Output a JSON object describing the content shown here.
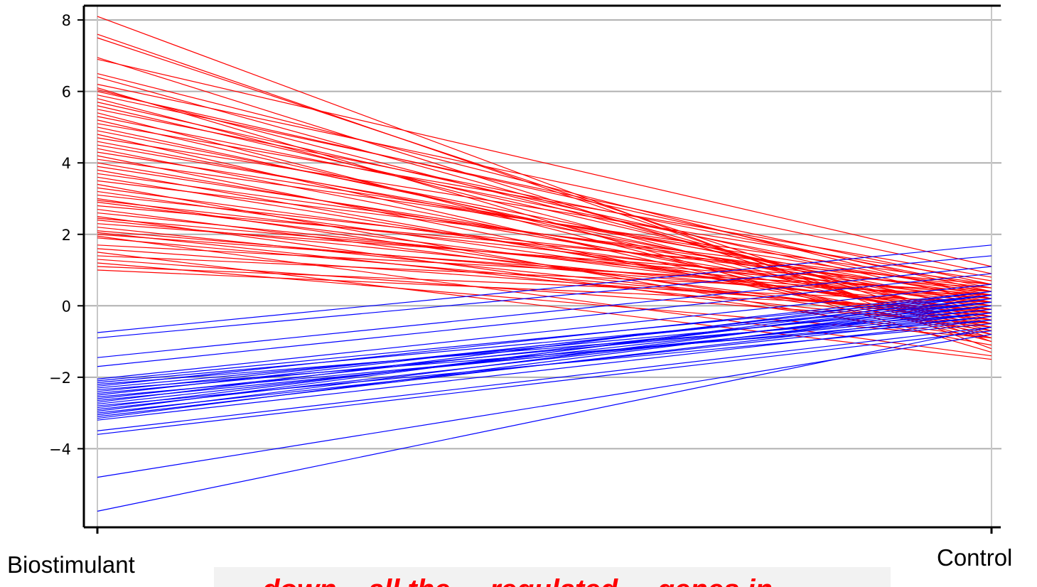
{
  "chart_data": {
    "type": "line",
    "subtype": "parallel-coordinates",
    "categories": [
      "Biostimulant",
      "Control"
    ],
    "ylim": [
      -6.2,
      8.4
    ],
    "yticks": [
      -4,
      -2,
      0,
      2,
      4,
      6,
      8
    ],
    "ytick_labels": [
      "−4",
      "−2",
      "0",
      "2",
      "4",
      "6",
      "8"
    ],
    "grid": true,
    "legend": "none",
    "colors": {
      "up_in_biostimulant": "#ff0000",
      "down_in_biostimulant": "#0000ff",
      "grid": "#b0b0b0",
      "caption_box": "#f2f2f2"
    },
    "series": [
      {
        "color": "#ff0000",
        "lines": [
          [
            8.1,
            -1.2
          ],
          [
            7.6,
            -1.0
          ],
          [
            7.5,
            -0.8
          ],
          [
            6.95,
            -0.9
          ],
          [
            6.9,
            1.1
          ],
          [
            6.5,
            0.2
          ],
          [
            6.4,
            -0.5
          ],
          [
            6.2,
            0.9
          ],
          [
            6.1,
            -1.3
          ],
          [
            6.05,
            -0.4
          ],
          [
            6.0,
            0.4
          ],
          [
            5.9,
            0.6
          ],
          [
            5.8,
            -0.7
          ],
          [
            5.7,
            0.1
          ],
          [
            5.6,
            -0.2
          ],
          [
            5.5,
            0.5
          ],
          [
            5.4,
            -1.0
          ],
          [
            5.3,
            0.3
          ],
          [
            5.2,
            -0.6
          ],
          [
            5.1,
            0.8
          ],
          [
            5.0,
            -0.3
          ],
          [
            4.9,
            0.0
          ],
          [
            4.8,
            -0.9
          ],
          [
            4.7,
            0.7
          ],
          [
            4.6,
            -0.1
          ],
          [
            4.5,
            0.2
          ],
          [
            4.4,
            -0.5
          ],
          [
            4.3,
            0.4
          ],
          [
            4.2,
            -0.8
          ],
          [
            4.1,
            0.6
          ],
          [
            4.0,
            -0.2
          ],
          [
            3.9,
            0.1
          ],
          [
            3.8,
            -0.6
          ],
          [
            3.7,
            0.3
          ],
          [
            3.6,
            -0.4
          ],
          [
            3.5,
            0.5
          ],
          [
            3.4,
            -1.1
          ],
          [
            3.3,
            0.0
          ],
          [
            3.2,
            -0.3
          ],
          [
            3.1,
            0.4
          ],
          [
            3.0,
            -0.7
          ],
          [
            2.95,
            0.2
          ],
          [
            2.9,
            -0.2
          ],
          [
            2.8,
            0.6
          ],
          [
            2.7,
            -0.5
          ],
          [
            2.6,
            0.1
          ],
          [
            2.5,
            -0.9
          ],
          [
            2.45,
            0.3
          ],
          [
            2.4,
            -0.1
          ],
          [
            2.3,
            0.5
          ],
          [
            2.2,
            -0.4
          ],
          [
            2.1,
            0.0
          ],
          [
            2.05,
            -0.6
          ],
          [
            2.0,
            0.2
          ],
          [
            1.95,
            -1.4
          ],
          [
            1.9,
            -0.3
          ],
          [
            1.7,
            0.4
          ],
          [
            1.6,
            -0.2
          ],
          [
            1.5,
            -1.5
          ],
          [
            1.4,
            0.3
          ],
          [
            1.3,
            -0.5
          ],
          [
            1.2,
            -0.9
          ],
          [
            1.1,
            0.1
          ],
          [
            1.0,
            -0.1
          ]
        ]
      },
      {
        "color": "#0000ff",
        "lines": [
          [
            -0.75,
            1.7
          ],
          [
            -0.9,
            1.4
          ],
          [
            -1.45,
            1.1
          ],
          [
            -1.7,
            0.9
          ],
          [
            -2.05,
            0.6
          ],
          [
            -2.1,
            0.3
          ],
          [
            -2.15,
            0.1
          ],
          [
            -2.2,
            -0.2
          ],
          [
            -2.25,
            0.4
          ],
          [
            -2.3,
            0.0
          ],
          [
            -2.35,
            -0.4
          ],
          [
            -2.4,
            0.2
          ],
          [
            -2.45,
            -0.1
          ],
          [
            -2.5,
            0.3
          ],
          [
            -2.55,
            -0.3
          ],
          [
            -2.6,
            0.1
          ],
          [
            -2.65,
            -0.2
          ],
          [
            -2.7,
            0.4
          ],
          [
            -2.75,
            0.0
          ],
          [
            -2.8,
            -0.5
          ],
          [
            -2.85,
            0.2
          ],
          [
            -2.9,
            -0.1
          ],
          [
            -2.95,
            0.3
          ],
          [
            -3.0,
            -0.3
          ],
          [
            -3.05,
            0.1
          ],
          [
            -3.1,
            -0.2
          ],
          [
            -3.15,
            0.0
          ],
          [
            -3.2,
            -0.4
          ],
          [
            -3.5,
            -0.6
          ],
          [
            -3.6,
            -0.7
          ],
          [
            -4.8,
            -0.8
          ],
          [
            -5.75,
            -0.6
          ]
        ]
      }
    ]
  },
  "labels": {
    "left": "Biostimulant",
    "right": "Control"
  }
}
